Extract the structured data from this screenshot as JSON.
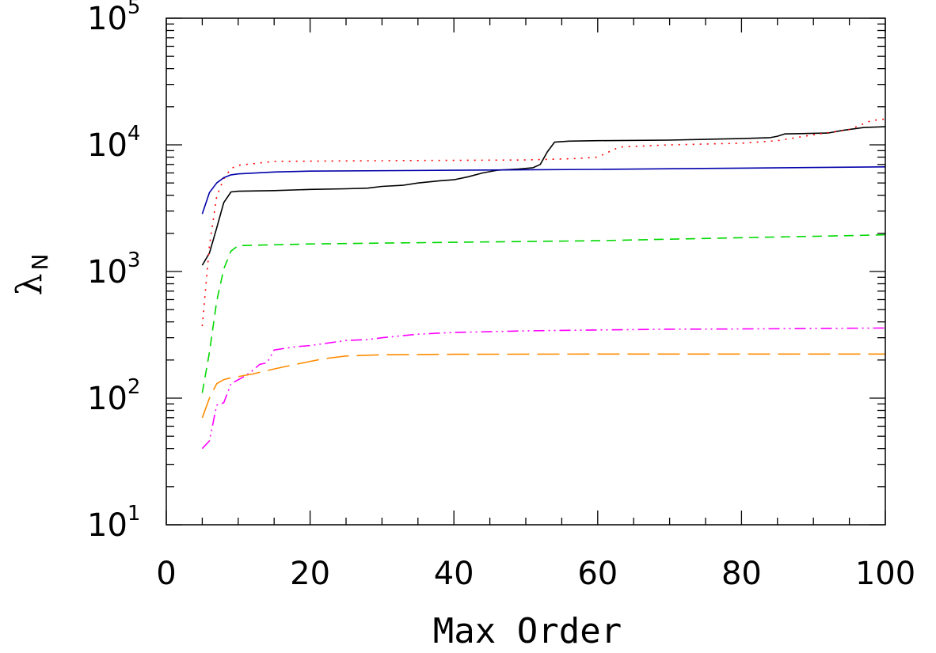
{
  "chart_data": {
    "type": "line",
    "xlabel": "Max Order",
    "ylabel": "λ",
    "ylabel_subscript": "N",
    "xlim": [
      0,
      100
    ],
    "ylim": [
      10,
      100000
    ],
    "yscale": "log",
    "grid": false,
    "x_ticks": [
      0,
      20,
      40,
      60,
      80,
      100
    ],
    "x_tick_labels": [
      "0",
      "20",
      "40",
      "60",
      "80",
      "100"
    ],
    "y_ticks": [
      10,
      100,
      1000,
      10000,
      100000
    ],
    "y_tick_labels": [
      {
        "base": "10",
        "exp": "1"
      },
      {
        "base": "10",
        "exp": "2"
      },
      {
        "base": "10",
        "exp": "3"
      },
      {
        "base": "10",
        "exp": "4"
      },
      {
        "base": "10",
        "exp": "5"
      }
    ],
    "series": [
      {
        "color": "#000000",
        "dash": "",
        "points": [
          [
            5,
            1120
          ],
          [
            6,
            1400
          ],
          [
            7,
            2200
          ],
          [
            8,
            3500
          ],
          [
            9,
            4250
          ],
          [
            10,
            4300
          ],
          [
            15,
            4350
          ],
          [
            20,
            4450
          ],
          [
            25,
            4500
          ],
          [
            28,
            4550
          ],
          [
            30,
            4700
          ],
          [
            33,
            4800
          ],
          [
            35,
            5000
          ],
          [
            38,
            5200
          ],
          [
            40,
            5300
          ],
          [
            42,
            5600
          ],
          [
            44,
            6000
          ],
          [
            46,
            6300
          ],
          [
            49,
            6450
          ],
          [
            51,
            6600
          ],
          [
            52,
            7000
          ],
          [
            53,
            8800
          ],
          [
            54,
            10500
          ],
          [
            56,
            10700
          ],
          [
            60,
            10800
          ],
          [
            70,
            10900
          ],
          [
            80,
            11200
          ],
          [
            84,
            11400
          ],
          [
            85,
            11700
          ],
          [
            86,
            12200
          ],
          [
            92,
            12400
          ],
          [
            94,
            13000
          ],
          [
            97,
            13700
          ],
          [
            100,
            13900
          ]
        ]
      },
      {
        "color": "#ff0000",
        "dash": "2,7",
        "points": [
          [
            5,
            370
          ],
          [
            6,
            1600
          ],
          [
            7,
            3900
          ],
          [
            8,
            5400
          ],
          [
            9,
            6500
          ],
          [
            10,
            6900
          ],
          [
            15,
            7400
          ],
          [
            30,
            7500
          ],
          [
            50,
            7600
          ],
          [
            57,
            7800
          ],
          [
            60,
            8000
          ],
          [
            63,
            9600
          ],
          [
            70,
            10000
          ],
          [
            80,
            10300
          ],
          [
            85,
            10800
          ],
          [
            90,
            12000
          ],
          [
            95,
            13200
          ],
          [
            98,
            15500
          ],
          [
            100,
            16000
          ]
        ]
      },
      {
        "color": "#0000aa",
        "dash": "",
        "points": [
          [
            5,
            2850
          ],
          [
            6,
            4200
          ],
          [
            7,
            5000
          ],
          [
            8,
            5500
          ],
          [
            9,
            5800
          ],
          [
            10,
            5900
          ],
          [
            15,
            6100
          ],
          [
            20,
            6200
          ],
          [
            40,
            6300
          ],
          [
            60,
            6400
          ],
          [
            80,
            6550
          ],
          [
            100,
            6700
          ]
        ]
      },
      {
        "color": "#00d800",
        "dash": "12,8",
        "points": [
          [
            5,
            110
          ],
          [
            6,
            230
          ],
          [
            7,
            580
          ],
          [
            8,
            1050
          ],
          [
            9,
            1450
          ],
          [
            10,
            1600
          ],
          [
            20,
            1650
          ],
          [
            40,
            1700
          ],
          [
            60,
            1750
          ],
          [
            80,
            1850
          ],
          [
            95,
            1920
          ],
          [
            100,
            1950
          ]
        ]
      },
      {
        "color": "#ff00ff",
        "dash": "14,5,2,5,2,5",
        "points": [
          [
            5,
            40
          ],
          [
            6,
            46
          ],
          [
            7,
            88
          ],
          [
            8,
            92
          ],
          [
            9,
            130
          ],
          [
            11,
            150
          ],
          [
            12,
            165
          ],
          [
            13,
            185
          ],
          [
            14,
            190
          ],
          [
            15,
            240
          ],
          [
            18,
            255
          ],
          [
            20,
            260
          ],
          [
            22,
            270
          ],
          [
            25,
            285
          ],
          [
            28,
            290
          ],
          [
            30,
            300
          ],
          [
            35,
            320
          ],
          [
            40,
            330
          ],
          [
            50,
            340
          ],
          [
            60,
            345
          ],
          [
            70,
            350
          ],
          [
            80,
            352
          ],
          [
            90,
            355
          ],
          [
            100,
            358
          ]
        ]
      },
      {
        "color": "#ff8c00",
        "dash": "28,10",
        "points": [
          [
            5,
            70
          ],
          [
            6,
            100
          ],
          [
            7,
            130
          ],
          [
            8,
            140
          ],
          [
            9,
            145
          ],
          [
            10,
            148
          ],
          [
            12,
            155
          ],
          [
            15,
            170
          ],
          [
            18,
            185
          ],
          [
            20,
            195
          ],
          [
            22,
            205
          ],
          [
            25,
            215
          ],
          [
            30,
            220
          ],
          [
            40,
            222
          ],
          [
            60,
            223
          ],
          [
            80,
            223
          ],
          [
            100,
            223
          ]
        ]
      }
    ]
  }
}
